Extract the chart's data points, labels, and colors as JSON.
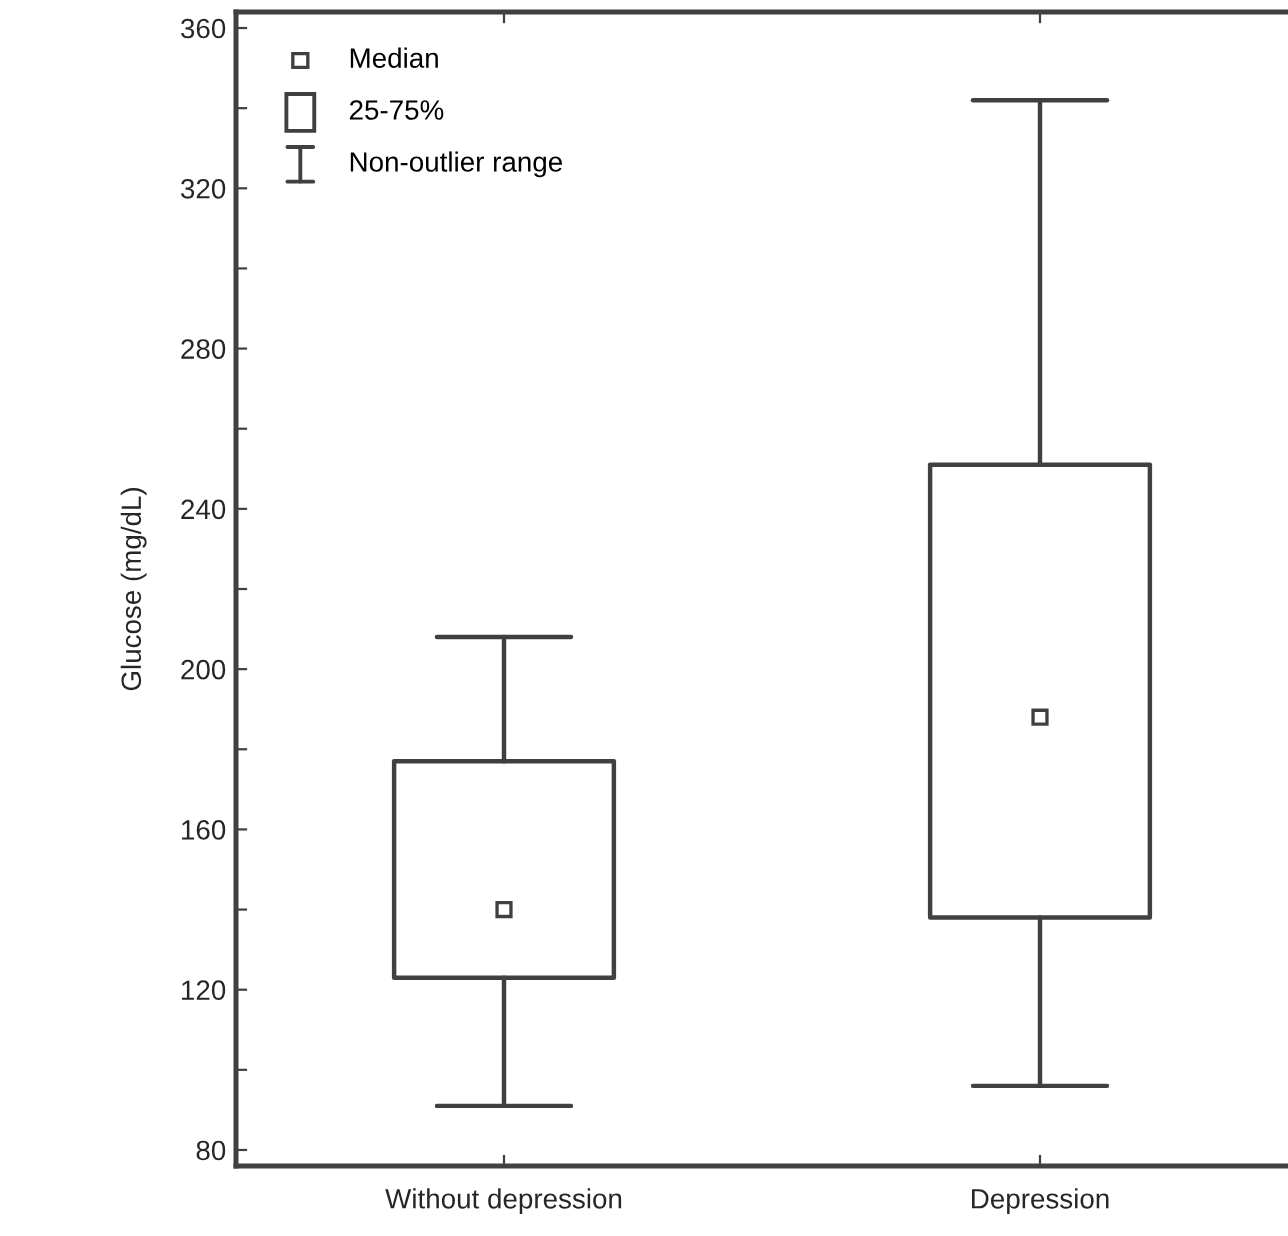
{
  "chart_data": {
    "type": "box",
    "ylabel": "Glucose (mg/dL)",
    "categories": [
      "Without depression",
      "Depression"
    ],
    "boxes": [
      {
        "low": 91,
        "q1": 123,
        "median": 140,
        "q3": 177,
        "high": 208
      },
      {
        "low": 96,
        "q1": 138,
        "median": 188,
        "q3": 251,
        "high": 342
      }
    ],
    "color": "#404040",
    "ylim": [
      76,
      364
    ],
    "yticks": [
      80,
      {
        "value": 100,
        "label": null
      },
      120,
      {
        "value": 140,
        "label": null
      },
      160,
      {
        "value": 180,
        "label": null
      },
      200,
      {
        "value": 220,
        "label": null
      },
      240,
      {
        "value": 260,
        "label": null
      },
      280,
      {
        "value": 300,
        "label": null
      },
      320,
      {
        "value": 340,
        "label": null
      },
      360
    ],
    "annotations": [
      "Median",
      "25-75%",
      "Non-outlier range"
    ],
    "grid": false
  }
}
